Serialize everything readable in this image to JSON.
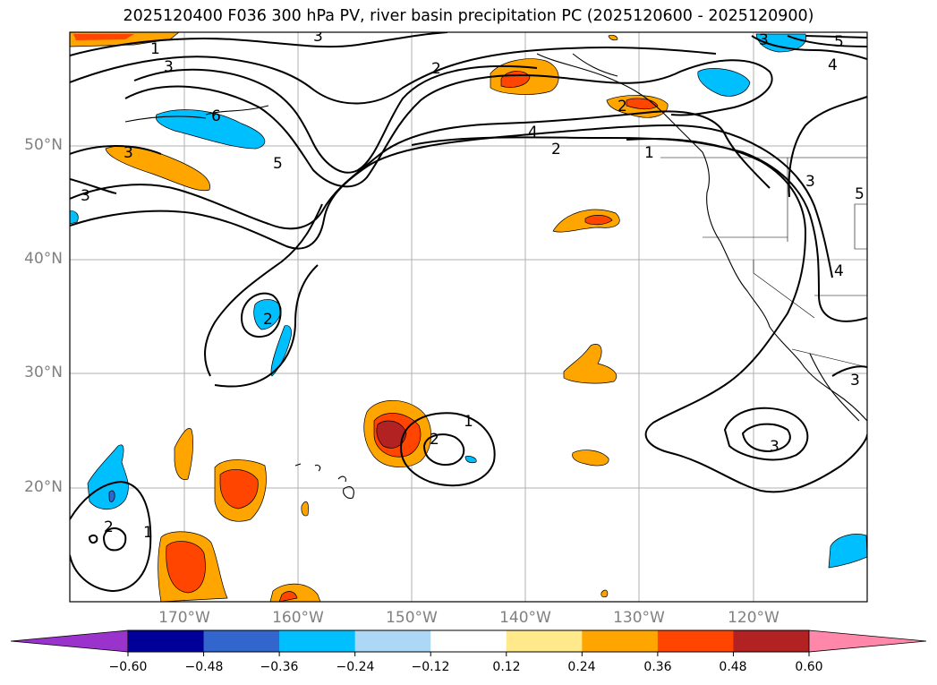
{
  "title": "2025120400 F036 300 hPa PV, river basin precipitation PC (2025120600 - 2025120900)",
  "map": {
    "lat_labels": [
      "50°N",
      "40°N",
      "30°N",
      "20°N"
    ],
    "lon_labels": [
      "170°W",
      "160°W",
      "150°W",
      "140°W",
      "130°W",
      "120°W"
    ],
    "extent": {
      "lon_min": -180,
      "lon_max": -110,
      "lat_min": 10,
      "lat_max": 60
    },
    "contour_labels": [
      "1",
      "3",
      "6",
      "3",
      "2",
      "4",
      "2",
      "1",
      "5",
      "3",
      "2",
      "4",
      "5",
      "3",
      "5",
      "4",
      "3",
      "2",
      "1",
      "2",
      "3",
      "3",
      "2",
      "1",
      "3"
    ]
  },
  "colorbar": {
    "colors": [
      "#9933cc",
      "#000099",
      "#3366cc",
      "#00bfff",
      "#add8f5",
      "#ffffff",
      "#ffe98a",
      "#ffa500",
      "#ff4500",
      "#b22222",
      "#ff88aa"
    ],
    "tick_labels": [
      "−0.60",
      "−0.48",
      "−0.36",
      "−0.24",
      "−0.12",
      "0.12",
      "0.24",
      "0.36",
      "0.48",
      "0.60"
    ]
  },
  "palette": {
    "orange": "#ffa500",
    "red_orange": "#ff4500",
    "dark_red": "#b22222",
    "cyan": "#00bfff",
    "blue": "#3366cc",
    "grid": "#b0b0b0"
  }
}
